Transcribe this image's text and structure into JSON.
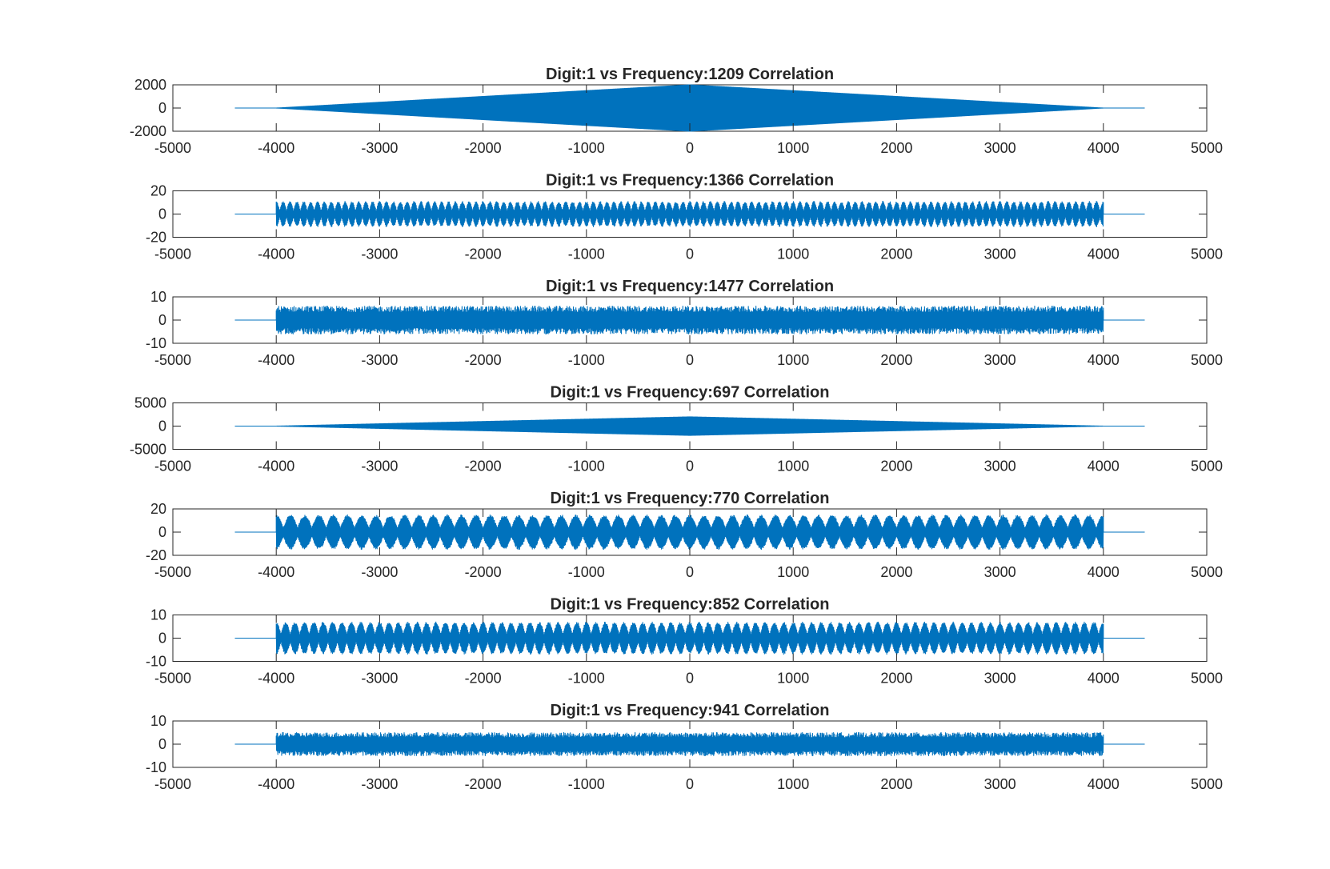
{
  "chart_data": [
    {
      "type": "line",
      "title": "Digit:1 vs Frequency:1209 Correlation",
      "xlim": [
        -5000,
        5000
      ],
      "ylim": [
        -2000,
        2000
      ],
      "xticks": [
        "-5000",
        "-4000",
        "-3000",
        "-2000",
        "-1000",
        "0",
        "1000",
        "2000",
        "3000",
        "4000",
        "5000"
      ],
      "yticks": [
        "-2000",
        "0",
        "2000"
      ],
      "series": [
        {
          "color": "#0072BD",
          "envelope": {
            "x_start": -4400,
            "x_end": 4400,
            "signal_start": -4000,
            "signal_end": 4000,
            "peak_x": 0,
            "peak_amplitude": 2000,
            "shape": "triangular",
            "modulation_cycles": 0
          }
        }
      ]
    },
    {
      "type": "line",
      "title": "Digit:1 vs Frequency:1366 Correlation",
      "xlim": [
        -5000,
        5000
      ],
      "ylim": [
        -20,
        20
      ],
      "xticks": [
        "-5000",
        "-4000",
        "-3000",
        "-2000",
        "-1000",
        "0",
        "1000",
        "2000",
        "3000",
        "4000",
        "5000"
      ],
      "yticks": [
        "-20",
        "0",
        "20"
      ],
      "series": [
        {
          "color": "#0072BD",
          "envelope": {
            "x_start": -4400,
            "x_end": 4400,
            "signal_start": -4000,
            "signal_end": 4000,
            "peak_amplitude": 11,
            "shape": "beating",
            "modulation_cycles": 120
          }
        }
      ]
    },
    {
      "type": "line",
      "title": "Digit:1 vs Frequency:1477 Correlation",
      "xlim": [
        -5000,
        5000
      ],
      "ylim": [
        -10,
        10
      ],
      "xticks": [
        "-5000",
        "-4000",
        "-3000",
        "-2000",
        "-1000",
        "0",
        "1000",
        "2000",
        "3000",
        "4000",
        "5000"
      ],
      "yticks": [
        "-10",
        "0",
        "10"
      ],
      "series": [
        {
          "color": "#0072BD",
          "envelope": {
            "x_start": -4400,
            "x_end": 4400,
            "signal_start": -4000,
            "signal_end": 4000,
            "peak_amplitude": 6,
            "shape": "noisy",
            "modulation_cycles": 0
          }
        }
      ]
    },
    {
      "type": "line",
      "title": "Digit:1 vs Frequency:697 Correlation",
      "xlim": [
        -5000,
        5000
      ],
      "ylim": [
        -5000,
        5000
      ],
      "xticks": [
        "-5000",
        "-4000",
        "-3000",
        "-2000",
        "-1000",
        "0",
        "1000",
        "2000",
        "3000",
        "4000",
        "5000"
      ],
      "yticks": [
        "-5000",
        "0",
        "5000"
      ],
      "series": [
        {
          "color": "#0072BD",
          "envelope": {
            "x_start": -4400,
            "x_end": 4400,
            "signal_start": -4000,
            "signal_end": 4000,
            "peak_x": 0,
            "peak_amplitude": 2000,
            "shape": "triangular",
            "modulation_cycles": 0
          }
        }
      ]
    },
    {
      "type": "line",
      "title": "Digit:1 vs Frequency:770 Correlation",
      "xlim": [
        -5000,
        5000
      ],
      "ylim": [
        -20,
        20
      ],
      "xticks": [
        "-5000",
        "-4000",
        "-3000",
        "-2000",
        "-1000",
        "0",
        "1000",
        "2000",
        "3000",
        "4000",
        "5000"
      ],
      "yticks": [
        "-20",
        "0",
        "20"
      ],
      "series": [
        {
          "color": "#0072BD",
          "envelope": {
            "x_start": -4400,
            "x_end": 4400,
            "signal_start": -4000,
            "signal_end": 4000,
            "peak_amplitude": 15,
            "shape": "beating",
            "modulation_cycles": 58
          }
        }
      ]
    },
    {
      "type": "line",
      "title": "Digit:1 vs Frequency:852 Correlation",
      "xlim": [
        -5000,
        5000
      ],
      "ylim": [
        -10,
        10
      ],
      "xticks": [
        "-5000",
        "-4000",
        "-3000",
        "-2000",
        "-1000",
        "0",
        "1000",
        "2000",
        "3000",
        "4000",
        "5000"
      ],
      "yticks": [
        "-10",
        "0",
        "10"
      ],
      "series": [
        {
          "color": "#0072BD",
          "envelope": {
            "x_start": -4400,
            "x_end": 4400,
            "signal_start": -4000,
            "signal_end": 4000,
            "peak_amplitude": 7,
            "shape": "beating",
            "modulation_cycles": 88
          }
        }
      ]
    },
    {
      "type": "line",
      "title": "Digit:1 vs Frequency:941 Correlation",
      "xlim": [
        -5000,
        5000
      ],
      "ylim": [
        -10,
        10
      ],
      "xticks": [
        "-5000",
        "-4000",
        "-3000",
        "-2000",
        "-1000",
        "0",
        "1000",
        "2000",
        "3000",
        "4000",
        "5000"
      ],
      "yticks": [
        "-10",
        "0",
        "10"
      ],
      "series": [
        {
          "color": "#0072BD",
          "envelope": {
            "x_start": -4400,
            "x_end": 4400,
            "signal_start": -4000,
            "signal_end": 4000,
            "peak_amplitude": 5,
            "shape": "noisy",
            "modulation_cycles": 0
          }
        }
      ]
    }
  ]
}
